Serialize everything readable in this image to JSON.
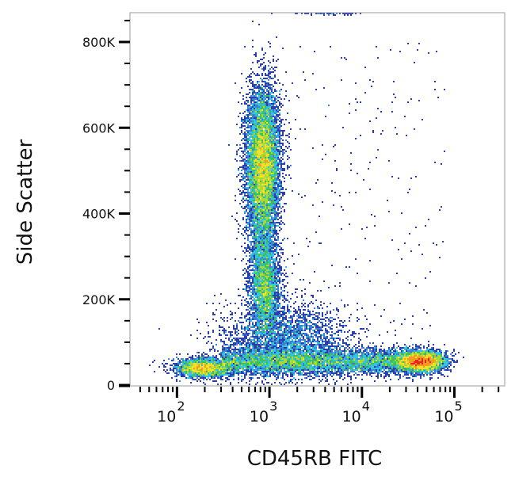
{
  "chart_data": {
    "type": "scatter",
    "subtype": "flow-cytometry pseudocolor density plot",
    "xlabel": "CD45RB FITC",
    "ylabel": "Side Scatter",
    "x_scale": "log",
    "xlim": [
      31,
      350000
    ],
    "ylim": [
      0,
      870000
    ],
    "x_ticks": [
      {
        "value": 100,
        "base": "10",
        "exp": "2"
      },
      {
        "value": 1000,
        "base": "10",
        "exp": "3"
      },
      {
        "value": 10000,
        "base": "10",
        "exp": "4"
      },
      {
        "value": 100000,
        "base": "10",
        "exp": "5"
      }
    ],
    "y_ticks": [
      {
        "value": 0,
        "label": "0"
      },
      {
        "value": 200000,
        "label": "200K"
      },
      {
        "value": 400000,
        "label": "400K"
      },
      {
        "value": 600000,
        "label": "600K"
      },
      {
        "value": 800000,
        "label": "800K"
      }
    ],
    "grid": false,
    "colormap": [
      "#2b3fa8",
      "#3f7fd6",
      "#33c4e0",
      "#3fbf5a",
      "#a8d83a",
      "#f2e02a",
      "#f59a23",
      "#e8261c"
    ],
    "populations": [
      {
        "x": 850,
        "x_sd_decades": 0.09,
        "y": 520000,
        "y_sd": 85000,
        "events": 9000
      },
      {
        "x": 900,
        "x_sd_decades": 0.08,
        "y": 220000,
        "y_sd": 50000,
        "events": 2500
      },
      {
        "x": 850,
        "x_sd_decades": 0.08,
        "y": 320000,
        "y_sd": 80000,
        "events": 1500
      },
      {
        "x_range": [
          300,
          40000
        ],
        "y": 55000,
        "y_sd": 15000,
        "events": 6000
      },
      {
        "x": 45000,
        "x_sd_decades": 0.12,
        "y": 55000,
        "y_sd": 12000,
        "events": 4000
      },
      {
        "x": 190,
        "x_sd_decades": 0.14,
        "y": 40000,
        "y_sd": 11000,
        "events": 2500
      },
      {
        "x": 1500,
        "x_sd_decades": 0.35,
        "y": 100000,
        "y_sd": 45000,
        "events": 3000
      },
      {
        "x_range": [
          1000,
          80000
        ],
        "y_range": [
          0,
          800000
        ],
        "events": 260
      },
      {
        "x": 4000,
        "x_sd_decades": 0.18,
        "y": 868000,
        "y_sd": 2000,
        "events": 200
      }
    ]
  }
}
